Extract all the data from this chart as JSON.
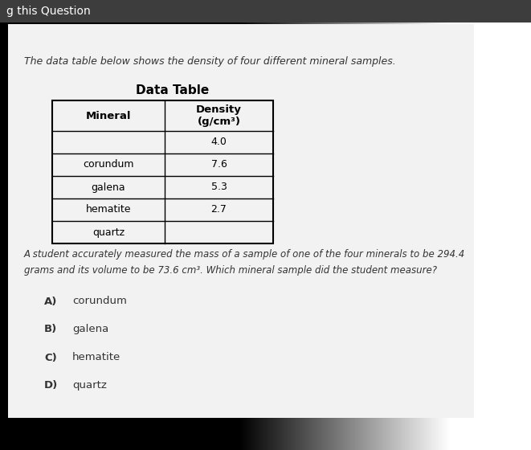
{
  "header_bar_text": "g this Question",
  "header_bar_color": "#3a3a3a",
  "bg_color_top": "#b8b8b8",
  "bg_color_bottom": "#5a5a5a",
  "card_color": "#f0f0f0",
  "intro_text": "The data table below shows the density of four different mineral samples.",
  "table_title": "Data Table",
  "col_header_mineral": "Mineral",
  "col_header_density": "Density\n(g/cm³)",
  "row1_mineral": "",
  "row1_density": "4.0",
  "minerals": [
    "corundum",
    "galena",
    "hematite",
    "quartz"
  ],
  "densities": [
    "7.6",
    "5.3",
    "2.7",
    ""
  ],
  "question_line1": "A student accurately measured the mass of a sample of one of the four minerals to be 294.4",
  "question_line2": "grams and its volume to be 73.6 cm³. Which mineral sample did the student measure?",
  "choices": [
    {
      "label": "A)",
      "text": "corundum"
    },
    {
      "label": "B)",
      "text": "galena"
    },
    {
      "label": "C)",
      "text": "hematite"
    },
    {
      "label": "D)",
      "text": "quartz"
    }
  ]
}
